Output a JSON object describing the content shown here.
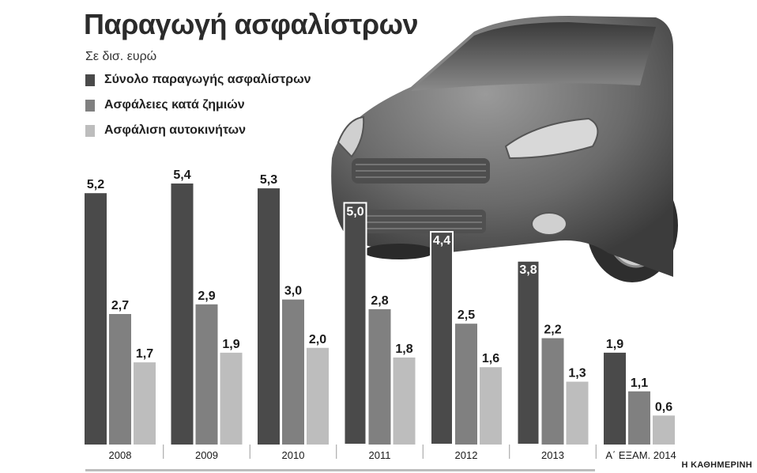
{
  "chart_data": {
    "type": "bar",
    "title": "Παραγωγή ασφαλίστρων",
    "subtitle": "Σε δισ. ευρώ",
    "categories": [
      "2008",
      "2009",
      "2010",
      "2011",
      "2012",
      "2013",
      "Α΄ ΕΞΑΜ. 2014"
    ],
    "series": [
      {
        "name": "Σύνολο παραγωγής ασφαλίστρων",
        "color": "#4a4a4a",
        "values": [
          5.2,
          5.4,
          5.3,
          5.0,
          4.4,
          3.8,
          1.9
        ],
        "labels": [
          "5,2",
          "5,4",
          "5,3",
          "5,0",
          "4,4",
          "3,8",
          "1,9"
        ]
      },
      {
        "name": "Ασφάλειες κατά ζημιών",
        "color": "#808080",
        "values": [
          2.7,
          2.9,
          3.0,
          2.8,
          2.5,
          2.2,
          1.1
        ],
        "labels": [
          "2,7",
          "2,9",
          "3,0",
          "2,8",
          "2,5",
          "2,2",
          "1,1"
        ]
      },
      {
        "name": "Ασφάλιση αυτοκινήτων",
        "color": "#bdbdbd",
        "values": [
          1.7,
          1.9,
          2.0,
          1.8,
          1.6,
          1.3,
          0.6
        ],
        "labels": [
          "1,7",
          "1,9",
          "2,0",
          "1,8",
          "1,6",
          "1,3",
          "0,6"
        ]
      }
    ],
    "ylim": [
      0,
      5.6
    ],
    "legend": "top-left",
    "grid": false
  },
  "credit": "Η ΚΑΘΗΜΕΡΙΝΗ",
  "background_image": "car-photo"
}
